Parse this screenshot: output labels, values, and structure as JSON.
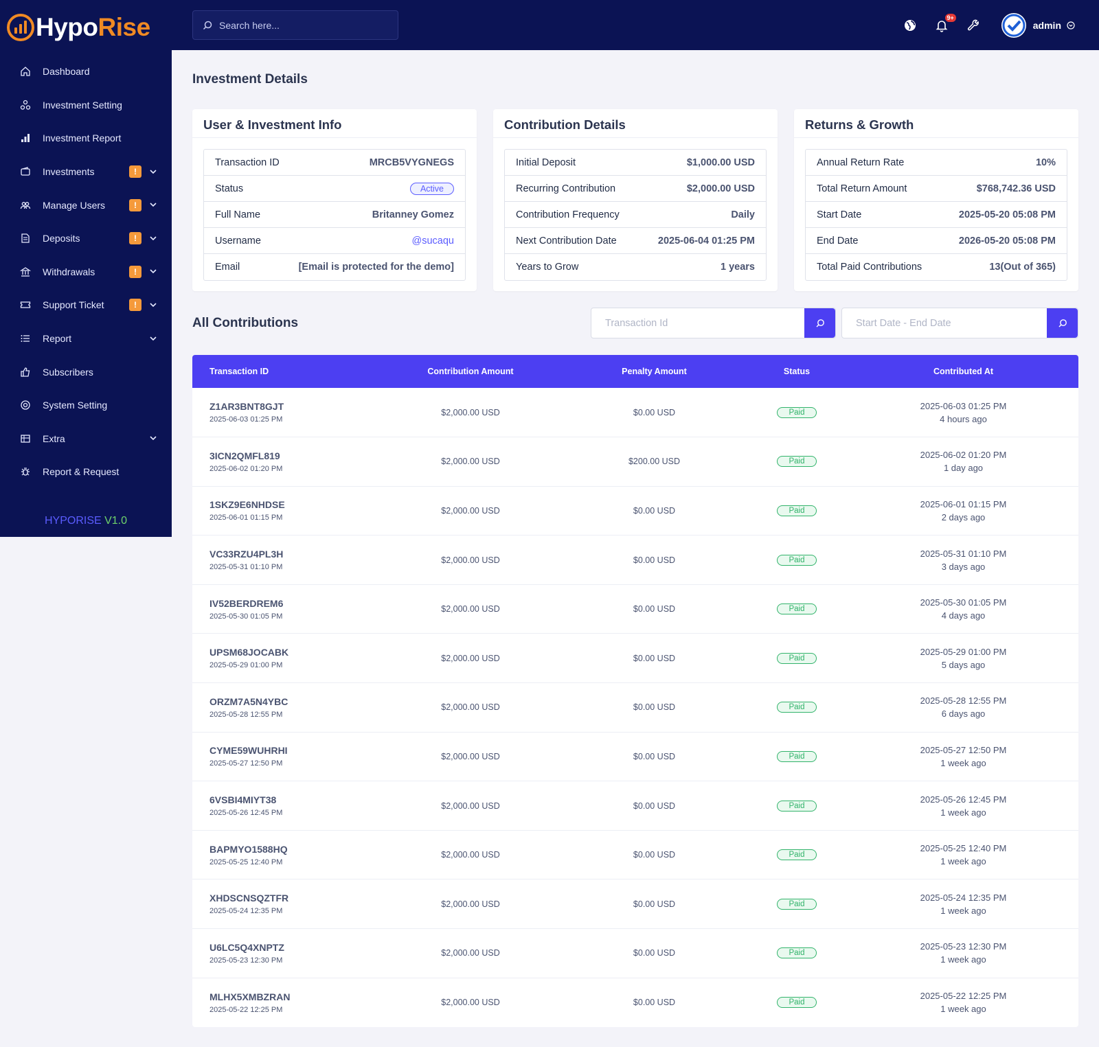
{
  "brand": {
    "part1": "Hypo",
    "part2": "Rise",
    "version_name": "HYPORISE",
    "version_num": "V1.0"
  },
  "sidebar": {
    "items": [
      {
        "label": "Dashboard",
        "icon": "home-icon",
        "badge": "",
        "has_chevron": false
      },
      {
        "label": "Investment Setting",
        "icon": "settings-nodes-icon",
        "badge": "",
        "has_chevron": false
      },
      {
        "label": "Investment Report",
        "icon": "bar-chart-icon",
        "badge": "",
        "has_chevron": false
      },
      {
        "label": "Investments",
        "icon": "wallet-icon",
        "badge": "!",
        "has_chevron": true
      },
      {
        "label": "Manage Users",
        "icon": "users-icon",
        "badge": "!",
        "has_chevron": true
      },
      {
        "label": "Deposits",
        "icon": "document-icon",
        "badge": "!",
        "has_chevron": true
      },
      {
        "label": "Withdrawals",
        "icon": "bank-icon",
        "badge": "!",
        "has_chevron": true
      },
      {
        "label": "Support Ticket",
        "icon": "ticket-icon",
        "badge": "!",
        "has_chevron": true
      },
      {
        "label": "Report",
        "icon": "list-icon",
        "badge": "",
        "has_chevron": true
      },
      {
        "label": "Subscribers",
        "icon": "thumbs-up-icon",
        "badge": "",
        "has_chevron": false
      },
      {
        "label": "System Setting",
        "icon": "lifebuoy-icon",
        "badge": "",
        "has_chevron": false
      },
      {
        "label": "Extra",
        "icon": "table-icon",
        "badge": "",
        "has_chevron": true
      },
      {
        "label": "Report & Request",
        "icon": "bug-icon",
        "badge": "",
        "has_chevron": false
      }
    ]
  },
  "topbar": {
    "search_placeholder": "Search here...",
    "notif_count": "9+",
    "user_name": "admin"
  },
  "page_title": "Investment Details",
  "cards": {
    "user": {
      "title": "User & Investment Info",
      "rows": [
        {
          "k": "Transaction ID",
          "v": "MRCB5VYGNEGS"
        },
        {
          "k": "Status",
          "v": "Active"
        },
        {
          "k": "Full Name",
          "v": "Britanney Gomez"
        },
        {
          "k": "Username",
          "v": "@sucaqu"
        },
        {
          "k": "Email",
          "v": "[Email is protected for the demo]"
        }
      ]
    },
    "contribution": {
      "title": "Contribution Details",
      "rows": [
        {
          "k": "Initial Deposit",
          "v": "$1,000.00 USD"
        },
        {
          "k": "Recurring Contribution",
          "v": "$2,000.00 USD"
        },
        {
          "k": "Contribution Frequency",
          "v": "Daily"
        },
        {
          "k": "Next Contribution Date",
          "v": "2025-06-04 01:25 PM"
        },
        {
          "k": "Years to Grow",
          "v": "1 years"
        }
      ]
    },
    "returns": {
      "title": "Returns & Growth",
      "rows": [
        {
          "k": "Annual Return Rate",
          "v": "10%"
        },
        {
          "k": "Total Return Amount",
          "v": "$768,742.36 USD"
        },
        {
          "k": "Start Date",
          "v": "2025-05-20 05:08 PM"
        },
        {
          "k": "End Date",
          "v": "2026-05-20 05:08 PM"
        },
        {
          "k": "Total Paid Contributions",
          "v": "13(Out of 365)"
        }
      ]
    }
  },
  "contributions": {
    "title": "All Contributions",
    "filter_tx_placeholder": "Transaction Id",
    "filter_date_placeholder": "Start Date - End Date",
    "headers": [
      "Transaction ID",
      "Contribution Amount",
      "Penalty Amount",
      "Status",
      "Contributed At"
    ],
    "rows": [
      {
        "id": "Z1AR3BNT8GJT",
        "date": "2025-06-03 01:25 PM",
        "amount": "$2,000.00 USD",
        "penalty": "$0.00 USD",
        "status": "Paid",
        "at": "2025-06-03 01:25 PM",
        "ago": "4 hours ago"
      },
      {
        "id": "3ICN2QMFL819",
        "date": "2025-06-02 01:20 PM",
        "amount": "$2,000.00 USD",
        "penalty": "$200.00 USD",
        "status": "Paid",
        "at": "2025-06-02 01:20 PM",
        "ago": "1 day ago"
      },
      {
        "id": "1SKZ9E6NHDSE",
        "date": "2025-06-01 01:15 PM",
        "amount": "$2,000.00 USD",
        "penalty": "$0.00 USD",
        "status": "Paid",
        "at": "2025-06-01 01:15 PM",
        "ago": "2 days ago"
      },
      {
        "id": "VC33RZU4PL3H",
        "date": "2025-05-31 01:10 PM",
        "amount": "$2,000.00 USD",
        "penalty": "$0.00 USD",
        "status": "Paid",
        "at": "2025-05-31 01:10 PM",
        "ago": "3 days ago"
      },
      {
        "id": "IV52BERDREM6",
        "date": "2025-05-30 01:05 PM",
        "amount": "$2,000.00 USD",
        "penalty": "$0.00 USD",
        "status": "Paid",
        "at": "2025-05-30 01:05 PM",
        "ago": "4 days ago"
      },
      {
        "id": "UPSM68JOCABK",
        "date": "2025-05-29 01:00 PM",
        "amount": "$2,000.00 USD",
        "penalty": "$0.00 USD",
        "status": "Paid",
        "at": "2025-05-29 01:00 PM",
        "ago": "5 days ago"
      },
      {
        "id": "ORZM7A5N4YBC",
        "date": "2025-05-28 12:55 PM",
        "amount": "$2,000.00 USD",
        "penalty": "$0.00 USD",
        "status": "Paid",
        "at": "2025-05-28 12:55 PM",
        "ago": "6 days ago"
      },
      {
        "id": "CYME59WUHRHI",
        "date": "2025-05-27 12:50 PM",
        "amount": "$2,000.00 USD",
        "penalty": "$0.00 USD",
        "status": "Paid",
        "at": "2025-05-27 12:50 PM",
        "ago": "1 week ago"
      },
      {
        "id": "6VSBI4MIYT38",
        "date": "2025-05-26 12:45 PM",
        "amount": "$2,000.00 USD",
        "penalty": "$0.00 USD",
        "status": "Paid",
        "at": "2025-05-26 12:45 PM",
        "ago": "1 week ago"
      },
      {
        "id": "BAPMYO1588HQ",
        "date": "2025-05-25 12:40 PM",
        "amount": "$2,000.00 USD",
        "penalty": "$0.00 USD",
        "status": "Paid",
        "at": "2025-05-25 12:40 PM",
        "ago": "1 week ago"
      },
      {
        "id": "XHDSCNSQZTFR",
        "date": "2025-05-24 12:35 PM",
        "amount": "$2,000.00 USD",
        "penalty": "$0.00 USD",
        "status": "Paid",
        "at": "2025-05-24 12:35 PM",
        "ago": "1 week ago"
      },
      {
        "id": "U6LC5Q4XNPTZ",
        "date": "2025-05-23 12:30 PM",
        "amount": "$2,000.00 USD",
        "penalty": "$0.00 USD",
        "status": "Paid",
        "at": "2025-05-23 12:30 PM",
        "ago": "1 week ago"
      },
      {
        "id": "MLHX5XMBZRAN",
        "date": "2025-05-22 12:25 PM",
        "amount": "$2,000.00 USD",
        "penalty": "$0.00 USD",
        "status": "Paid",
        "at": "2025-05-22 12:25 PM",
        "ago": "1 week ago"
      }
    ]
  },
  "colors": {
    "sidebar_bg": "#0b1354",
    "accent": "#4c3ff2",
    "brand_orange": "#f08a24",
    "paid_green": "#31b36a",
    "warn_badge": "#f59a3b"
  }
}
